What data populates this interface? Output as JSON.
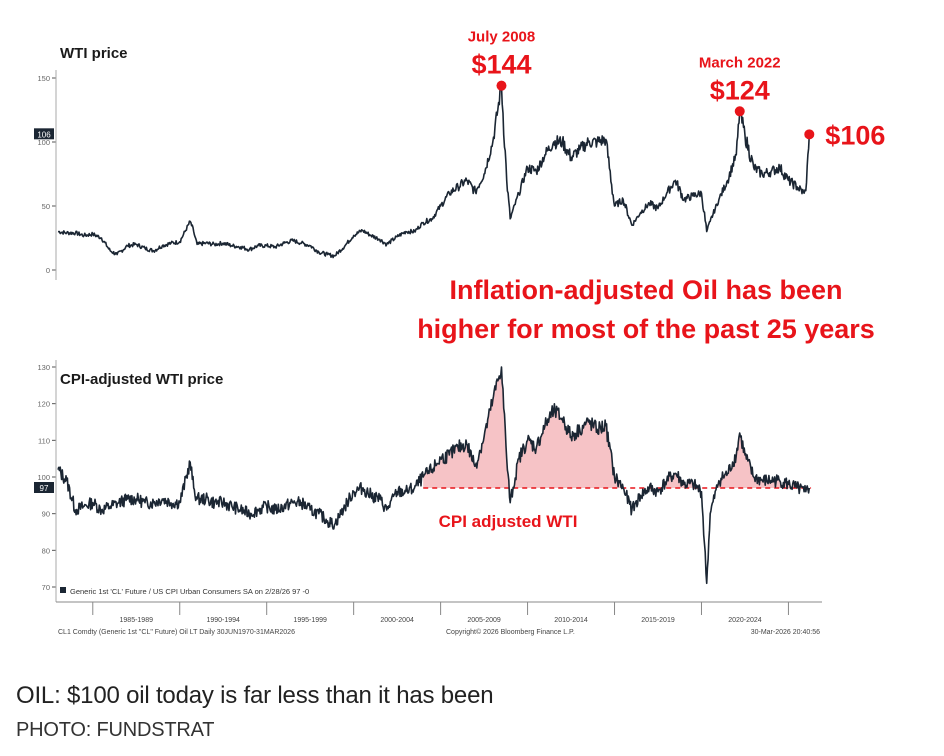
{
  "caption": "OIL: $100 oil today is far less than it has been",
  "credit": "PHOTO: FUNDSTRAT",
  "colors": {
    "line": "#1b2633",
    "accent": "#e8141a",
    "fill": "#f4b4b8",
    "axis": "#555555"
  },
  "chart_data": [
    {
      "type": "line",
      "title": "WTI price",
      "ylim": [
        -15,
        160
      ],
      "yticks": [
        0,
        50,
        100,
        150
      ],
      "last_value_tag": "106",
      "annotations": [
        {
          "label_top": "July 2008",
          "label_bottom": "$144",
          "x": 2008.5,
          "y": 144
        },
        {
          "label_top": "March 2022",
          "label_bottom": "$124",
          "x": 2022.2,
          "y": 124
        },
        {
          "label_top": "",
          "label_bottom": "$106",
          "x": 2026.2,
          "y": 106
        }
      ],
      "x": [
        1983.0,
        1983.5,
        1984.0,
        1984.5,
        1985.0,
        1985.5,
        1986.0,
        1986.4,
        1987.0,
        1987.5,
        1988.0,
        1988.5,
        1989.0,
        1989.5,
        1990.0,
        1990.6,
        1990.8,
        1991.0,
        1991.5,
        1992.0,
        1992.5,
        1993.0,
        1993.5,
        1994.0,
        1994.5,
        1995.0,
        1995.5,
        1996.0,
        1996.5,
        1997.0,
        1997.5,
        1998.0,
        1998.5,
        1998.9,
        1999.5,
        2000.0,
        2000.5,
        2001.0,
        2001.5,
        2001.9,
        2002.5,
        2003.0,
        2003.5,
        2004.0,
        2004.5,
        2005.0,
        2005.5,
        2006.0,
        2006.5,
        2007.0,
        2007.5,
        2008.0,
        2008.5,
        2008.8,
        2009.0,
        2009.5,
        2010.0,
        2010.5,
        2011.0,
        2011.5,
        2012.0,
        2012.5,
        2013.0,
        2013.5,
        2014.0,
        2014.5,
        2015.0,
        2015.5,
        2016.0,
        2016.5,
        2017.0,
        2017.5,
        2018.0,
        2018.5,
        2019.0,
        2019.5,
        2020.0,
        2020.3,
        2020.5,
        2021.0,
        2021.5,
        2022.0,
        2022.2,
        2022.5,
        2023.0,
        2023.5,
        2024.0,
        2024.5,
        2025.0,
        2025.5,
        2025.9,
        2026.0,
        2026.2
      ],
      "values": [
        30,
        29,
        29,
        27,
        28,
        25,
        15,
        12,
        19,
        20,
        17,
        15,
        19,
        21,
        22,
        38,
        30,
        20,
        21,
        20,
        21,
        19,
        18,
        16,
        19,
        19,
        18,
        21,
        23,
        21,
        19,
        14,
        12,
        11,
        19,
        27,
        31,
        27,
        24,
        20,
        26,
        30,
        30,
        37,
        40,
        50,
        60,
        65,
        70,
        61,
        75,
        100,
        144,
        70,
        40,
        60,
        80,
        77,
        90,
        100,
        100,
        88,
        94,
        100,
        100,
        102,
        50,
        55,
        35,
        45,
        52,
        48,
        60,
        70,
        55,
        58,
        60,
        30,
        38,
        55,
        70,
        90,
        124,
        105,
        80,
        75,
        77,
        80,
        70,
        65,
        60,
        62,
        106
      ]
    },
    {
      "type": "area",
      "title": "CPI-adjusted WTI price",
      "ylim": [
        68,
        133
      ],
      "yticks": [
        70,
        80,
        90,
        100,
        110,
        120,
        130
      ],
      "baseline": 97,
      "last_value_tag": "97",
      "annotation": "CPI adjusted WTI",
      "legend": "Generic 1st 'CL' Future / US CPI Urban Consumers SA on 2/28/26  97  -0",
      "x": [
        1983.0,
        1983.5,
        1984.0,
        1984.5,
        1985.0,
        1985.5,
        1986.0,
        1986.5,
        1987.0,
        1987.5,
        1988.0,
        1988.5,
        1989.0,
        1989.5,
        1990.0,
        1990.6,
        1990.8,
        1991.0,
        1991.5,
        1992.0,
        1992.5,
        1993.0,
        1993.5,
        1994.0,
        1994.5,
        1995.0,
        1995.5,
        1996.0,
        1996.5,
        1997.0,
        1997.5,
        1998.0,
        1998.5,
        1998.9,
        1999.5,
        2000.0,
        2000.5,
        2001.0,
        2001.5,
        2001.9,
        2002.5,
        2003.0,
        2003.5,
        2004.0,
        2004.5,
        2005.0,
        2005.5,
        2006.0,
        2006.5,
        2007.0,
        2007.5,
        2008.0,
        2008.5,
        2008.8,
        2009.0,
        2009.5,
        2010.0,
        2010.5,
        2011.0,
        2011.5,
        2012.0,
        2012.5,
        2013.0,
        2013.5,
        2014.0,
        2014.5,
        2015.0,
        2015.5,
        2016.0,
        2016.5,
        2017.0,
        2017.5,
        2018.0,
        2018.5,
        2019.0,
        2019.5,
        2020.0,
        2020.3,
        2020.5,
        2021.0,
        2021.5,
        2022.0,
        2022.2,
        2022.5,
        2023.0,
        2023.5,
        2024.0,
        2024.5,
        2025.0,
        2025.5,
        2025.9,
        2026.0,
        2026.2
      ],
      "values": [
        102,
        99,
        91,
        92,
        93,
        91,
        92,
        93,
        94,
        94,
        93,
        93,
        94,
        93,
        93,
        104,
        97,
        94,
        94,
        93,
        93,
        92,
        91,
        90,
        91,
        92,
        91,
        92,
        93,
        93,
        91,
        90,
        88,
        87,
        92,
        96,
        97,
        95,
        94,
        91,
        96,
        96,
        97,
        100,
        102,
        105,
        106,
        108,
        109,
        103,
        111,
        121,
        130,
        105,
        93,
        105,
        110,
        108,
        114,
        118,
        116,
        111,
        113,
        115,
        113,
        114,
        100,
        97,
        91,
        95,
        97,
        96,
        99,
        101,
        98,
        98,
        96,
        71,
        90,
        99,
        101,
        106,
        112,
        106,
        100,
        99,
        99,
        99,
        98,
        97,
        96,
        96,
        97
      ]
    }
  ],
  "x_axis": {
    "bins": [
      "1985-1989",
      "1990-1994",
      "1995-1999",
      "2000-2004",
      "2005-2009",
      "2010-2014",
      "2015-2019",
      "2020-2024"
    ],
    "footer_left": "CL1 Comdty (Generic 1st \"CL\" Future) Oil LT Daily 30JUN1970-31MAR2026",
    "footer_mid": "Copyright© 2026 Bloomberg Finance L.P.",
    "footer_right": "30-Mar-2026 20:40:56"
  },
  "headline": [
    "Inflation-adjusted Oil has been",
    "higher for most of the past 25 years"
  ]
}
